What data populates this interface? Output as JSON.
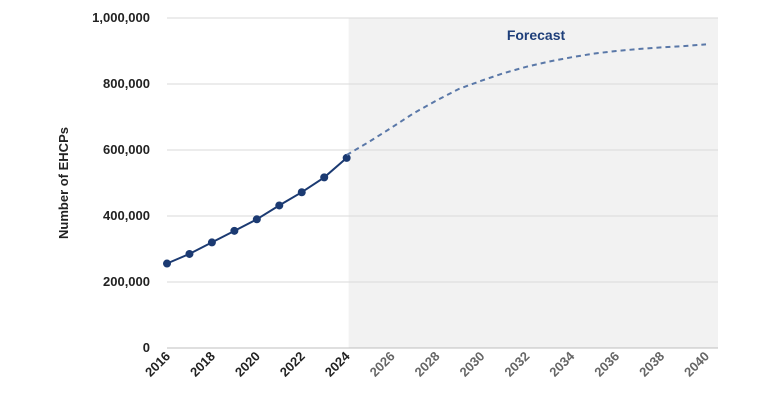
{
  "chart_data": {
    "type": "line",
    "xlim": [
      2016,
      2040
    ],
    "ylim": [
      0,
      1000000
    ],
    "grid": true,
    "ylabel": "Number of EHCPs",
    "forecast_label": "Forecast",
    "forecast_start": 2024,
    "x_ticks": [
      2016,
      2018,
      2020,
      2022,
      2024,
      2026,
      2028,
      2030,
      2032,
      2034,
      2036,
      2038,
      2040
    ],
    "x_tick_labels": [
      "2016",
      "2018",
      "2020",
      "2022",
      "2024",
      "2026",
      "2028",
      "2030",
      "2032",
      "2034",
      "2036",
      "2038",
      "2040"
    ],
    "y_ticks": [
      0,
      200000,
      400000,
      600000,
      800000,
      1000000
    ],
    "y_tick_labels": [
      "0",
      "200,000",
      "400,000",
      "600,000",
      "800,000",
      "1,000,000"
    ],
    "series": [
      {
        "style": "solid-markers",
        "x": [
          2016,
          2017,
          2018,
          2019,
          2020,
          2021,
          2022,
          2023,
          2024
        ],
        "y": [
          256000,
          285000,
          320000,
          355000,
          390000,
          432000,
          472000,
          517000,
          576000
        ]
      },
      {
        "style": "dashed",
        "x": [
          2024,
          2025,
          2026,
          2027,
          2028,
          2029,
          2030,
          2031,
          2032,
          2033,
          2034,
          2035,
          2036,
          2037,
          2038,
          2039,
          2040
        ],
        "y": [
          585000,
          625000,
          668000,
          712000,
          750000,
          785000,
          810000,
          833000,
          852000,
          868000,
          881000,
          892000,
          900000,
          906000,
          911000,
          915000,
          920000
        ]
      }
    ],
    "colors": {
      "actual": "#1b3a72",
      "forecast": "#5a78a8",
      "forecast_region": "#f2f2f2",
      "forecast_text": "#1f3f7a",
      "grid": "#d9d9d9",
      "axis": "#bfbfbf"
    }
  }
}
